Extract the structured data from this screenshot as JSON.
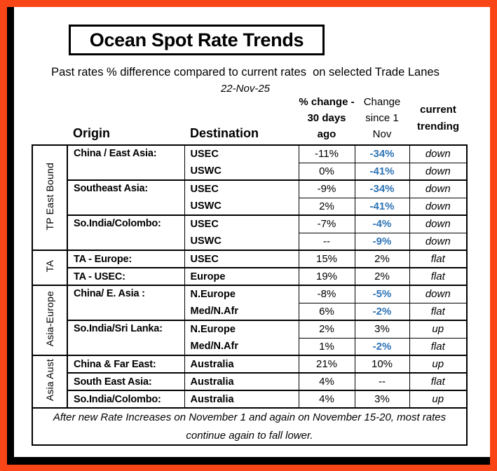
{
  "colors": {
    "frame_orange": "#FA4616",
    "shadow_black": "#000000",
    "value_blue": "#2E74B5"
  },
  "header": {
    "title": "Ocean Spot Rate Trends",
    "subtitle": "Past rates % difference compared to current rates  on selected Trade Lanes",
    "date": "22-Nov-25"
  },
  "table": {
    "column_headers": {
      "origin": "Origin",
      "destination": "Destination",
      "change_30_days": [
        "% change -",
        "30 days",
        "ago"
      ],
      "change_since_nov1": [
        "Change",
        "since 1",
        "Nov"
      ],
      "current_trending": [
        "current",
        "trending"
      ]
    },
    "groups": [
      {
        "label": "TP East Bound",
        "origins": [
          {
            "label": "China / East Asia:",
            "rows": [
              {
                "dest": "USEC",
                "change_30d": "-11%",
                "change_since": "-34%",
                "trend": "down"
              },
              {
                "dest": "USWC",
                "change_30d": "0%",
                "change_since": "-41%",
                "trend": "down"
              }
            ]
          },
          {
            "label": "Southeast Asia:",
            "rows": [
              {
                "dest": "USEC",
                "change_30d": "-9%",
                "change_since": "-34%",
                "trend": "down"
              },
              {
                "dest": "USWC",
                "change_30d": "2%",
                "change_since": "-41%",
                "trend": "down"
              }
            ]
          },
          {
            "label": "So.India/Colombo:",
            "rows": [
              {
                "dest": "USEC",
                "change_30d": "-7%",
                "change_since": "-4%",
                "trend": "down"
              },
              {
                "dest": "USWC",
                "change_30d": "--",
                "change_since": "-9%",
                "trend": "down"
              }
            ]
          }
        ]
      },
      {
        "label": "TA",
        "origins": [
          {
            "label": "TA - Europe:",
            "rows": [
              {
                "dest": "USEC",
                "change_30d": "15%",
                "change_since": "2%",
                "trend": "flat"
              }
            ]
          },
          {
            "label": "TA - USEC:",
            "rows": [
              {
                "dest": "Europe",
                "change_30d": "19%",
                "change_since": "2%",
                "trend": "flat"
              }
            ]
          }
        ]
      },
      {
        "label": "Asia-Europe",
        "origins": [
          {
            "label": "China/ E. Asia :",
            "rows": [
              {
                "dest": "N.Europe",
                "change_30d": "-8%",
                "change_since": "-5%",
                "trend": "down"
              },
              {
                "dest": "Med/N.Afr",
                "change_30d": "6%",
                "change_since": "-2%",
                "trend": "flat"
              }
            ]
          },
          {
            "label": "So.India/Sri Lanka:",
            "rows": [
              {
                "dest": "N.Europe",
                "change_30d": "2%",
                "change_since": "3%",
                "trend": "up"
              },
              {
                "dest": "Med/N.Afr",
                "change_30d": "1%",
                "change_since": "-2%",
                "trend": "flat"
              }
            ]
          }
        ]
      },
      {
        "label": "Asia Aust",
        "origins": [
          {
            "label": "China & Far East:",
            "rows": [
              {
                "dest": "Australia",
                "change_30d": "21%",
                "change_since": "10%",
                "trend": "up"
              }
            ]
          },
          {
            "label": "South East Asia:",
            "rows": [
              {
                "dest": "Australia",
                "change_30d": "4%",
                "change_since": "--",
                "trend": "flat"
              }
            ]
          },
          {
            "label": "So.India/Colombo:",
            "rows": [
              {
                "dest": "Australia",
                "change_30d": "4%",
                "change_since": "3%",
                "trend": "up"
              }
            ]
          }
        ]
      }
    ],
    "footnote": [
      "After new Rate Increases on November 1 and again on November 15-20, most rates",
      "continue again to fall lower."
    ]
  }
}
